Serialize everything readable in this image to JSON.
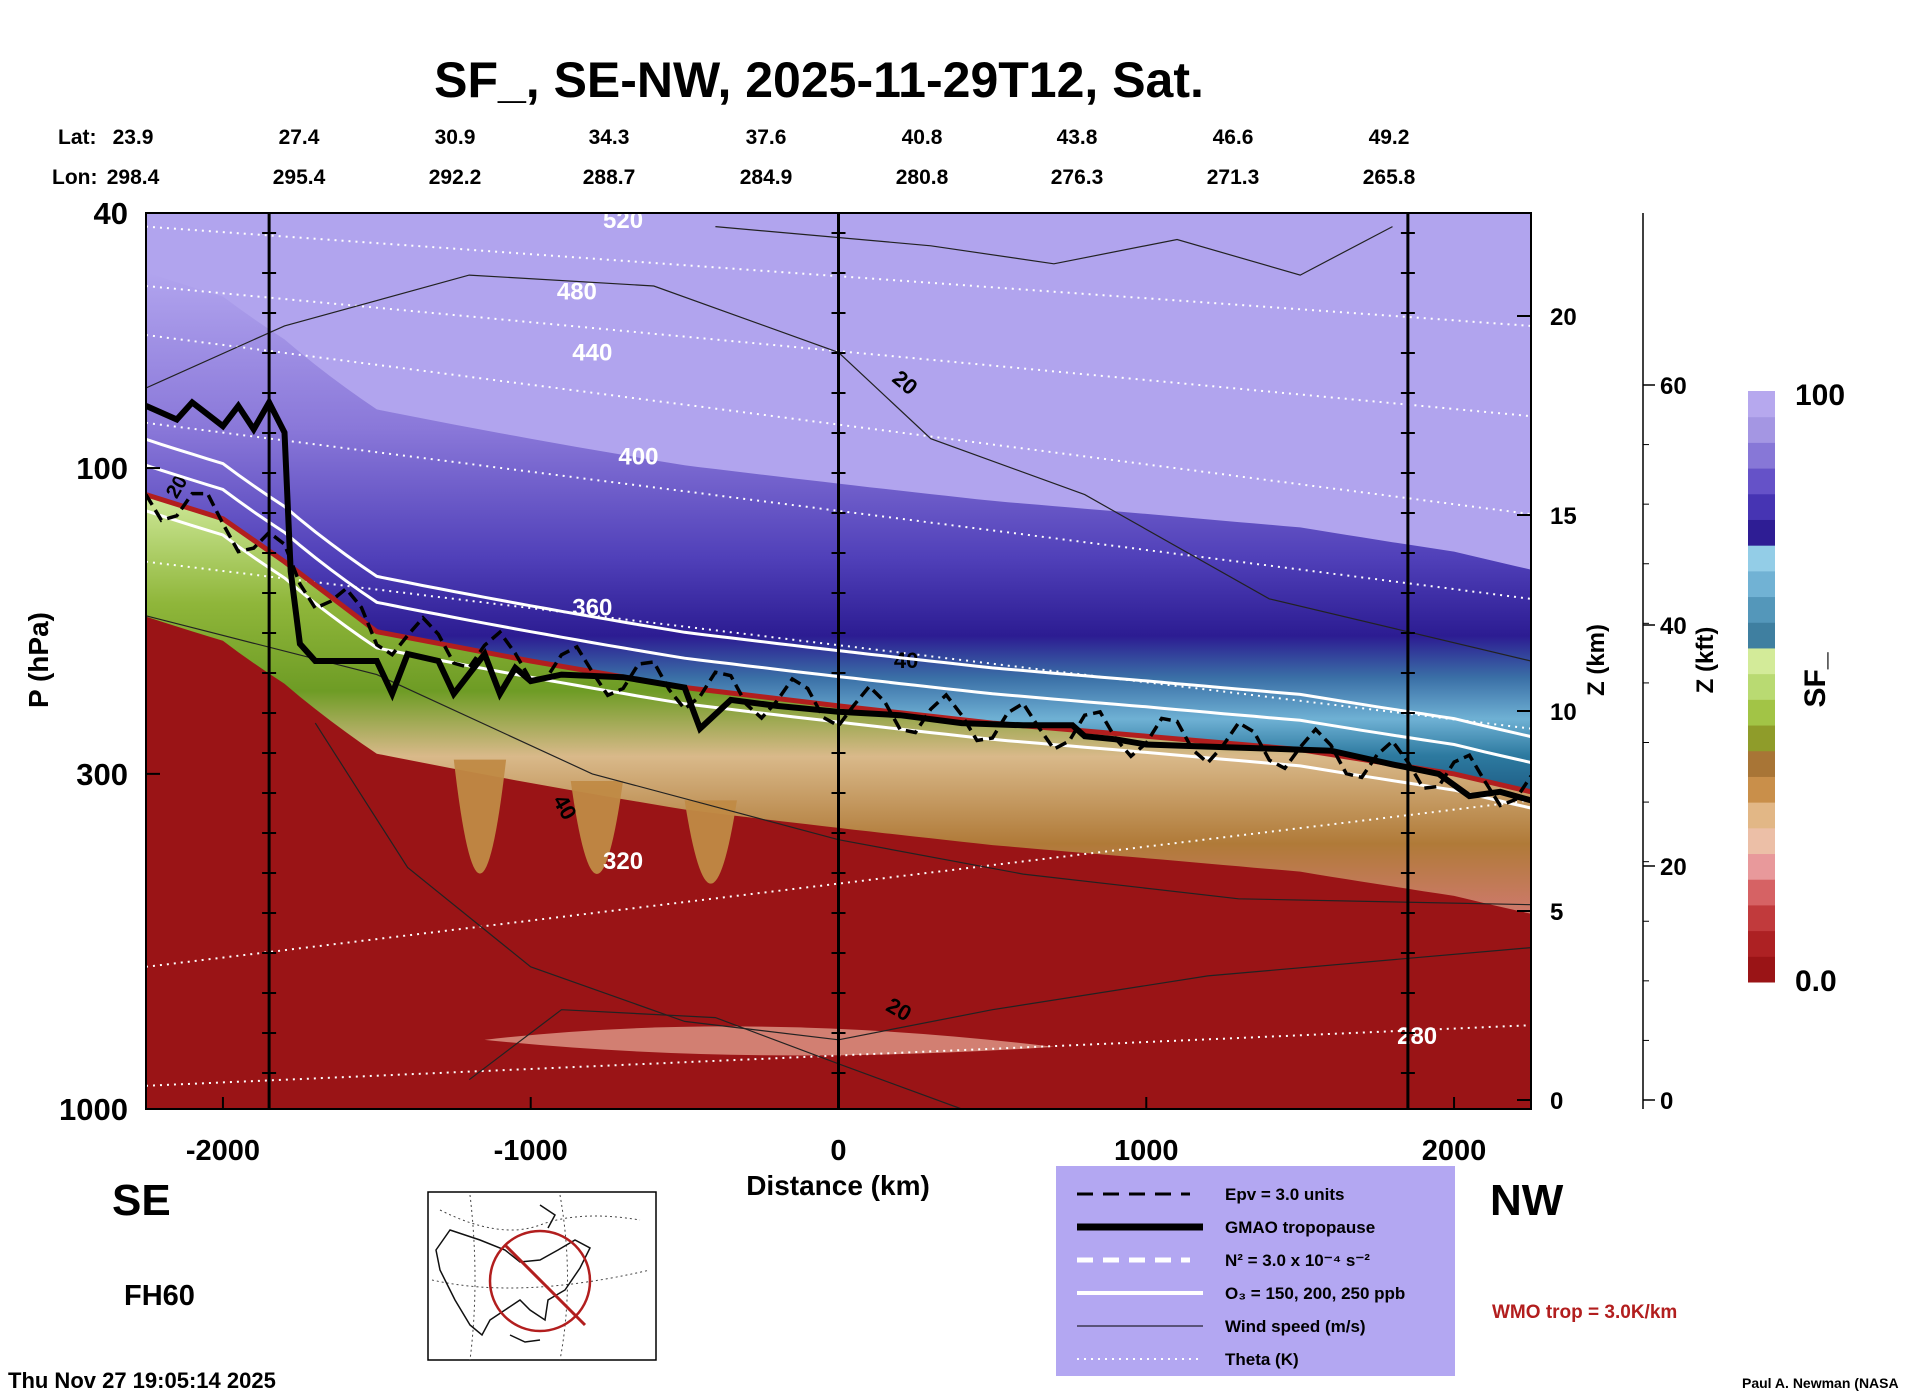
{
  "chart_data": {
    "type": "heatmap",
    "title": "SF_, SE-NW, 2025-11-29T12, Sat.",
    "xlabel": "Distance (km)",
    "ylabel": "P (hPa)",
    "y2label": "Z (km)",
    "y3label": "Z (kft)",
    "colorbar_label": "SF_",
    "colorbar_range": [
      0.0,
      100
    ],
    "colorbar_ticks": [
      "100",
      "0.0"
    ],
    "xlim": [
      -2250,
      2250
    ],
    "x_ticks": [
      -2000,
      -1000,
      0,
      1000,
      2000
    ],
    "x_tick_labels": [
      "-2000",
      "-1000",
      "0",
      "1000",
      "2000"
    ],
    "y_scale": "log",
    "ylim": [
      1000,
      40
    ],
    "y_ticks": [
      40,
      100,
      300,
      1000
    ],
    "z_km_ticks": [
      0,
      5,
      10,
      15,
      20
    ],
    "z_kft_ticks": [
      0,
      20,
      40,
      60
    ],
    "lat_label": "Lat:",
    "lon_label": "Lon:",
    "lat_values": [
      "23.9",
      "27.4",
      "30.9",
      "34.3",
      "37.6",
      "40.8",
      "43.8",
      "46.6",
      "49.2"
    ],
    "lon_values": [
      "298.4",
      "295.4",
      "292.2",
      "288.7",
      "284.9",
      "280.8",
      "276.3",
      "271.3",
      "265.8"
    ],
    "theta_contours": [
      280,
      320,
      360,
      400,
      440,
      480,
      520
    ],
    "theta_labels": [
      "280",
      "320",
      "360",
      "400",
      "440",
      "480",
      "520"
    ],
    "wind_labels": [
      "20",
      "40"
    ],
    "gmao_tropopause": {
      "x": [
        -2250,
        -2150,
        -2100,
        -2000,
        -1950,
        -1900,
        -1850,
        -1800,
        -1780,
        -1750,
        -1700,
        -1600,
        -1500,
        -1450,
        -1400,
        -1300,
        -1250,
        -1150,
        -1100,
        -1050,
        -1000,
        -900,
        -700,
        -500,
        -450,
        -350,
        -200,
        0,
        200,
        400,
        600,
        760,
        800,
        900,
        1000,
        1200,
        1400,
        1600,
        1800,
        1950,
        2050,
        2150,
        2250
      ],
      "p": [
        80,
        84,
        79,
        86,
        80,
        87,
        79,
        88,
        145,
        188,
        200,
        200,
        200,
        225,
        195,
        200,
        225,
        195,
        225,
        205,
        215,
        210,
        212,
        220,
        255,
        230,
        235,
        240,
        243,
        250,
        252,
        252,
        262,
        265,
        270,
        272,
        274,
        276,
        290,
        300,
        325,
        320,
        330
      ]
    },
    "wmo_tropopause_p": {
      "x": [
        -2250,
        -2000,
        -1800,
        -1500,
        -1000,
        -500,
        0,
        500,
        1000,
        1500,
        2000,
        2250
      ],
      "p": [
        110,
        120,
        140,
        180,
        200,
        220,
        235,
        250,
        262,
        275,
        300,
        320
      ]
    },
    "colorbar_colors": [
      "#9a1416",
      "#ad2123",
      "#c13a3c",
      "#d66264",
      "#e8999b",
      "#ecbfa7",
      "#e2b786",
      "#c98f4a",
      "#a87536",
      "#8f9c2a",
      "#a2c446",
      "#b9da72",
      "#d3eb99",
      "#3f7fa0",
      "#5497ba",
      "#71b2d4",
      "#93cde7",
      "#2e1d94",
      "#4634b3",
      "#6552c8",
      "#8777d7",
      "#a496e3",
      "#b6a8ee"
    ],
    "legend": {
      "epv": "Epv = 3.0 units",
      "gmao": "GMAO tropopause",
      "n2": "N² = 3.0 x 10⁻⁴ s⁻²",
      "o3": "O₃ = 150, 200, 250 ppb",
      "wind": "Wind speed (m/s)",
      "theta": "Theta (K)"
    },
    "wmo_note": "WMO trop = 3.0K/km"
  },
  "labels": {
    "se": "SE",
    "nw": "NW",
    "fh": "FH60",
    "timestamp": "Thu Nov 27 19:05:14 2025",
    "credit": "Paul A. Newman (NASA"
  },
  "colors": {
    "background": "#ffffff",
    "legend_bg": "#b3a7f2",
    "wmo_trop": "#b21e1e",
    "axis": "#000000"
  }
}
